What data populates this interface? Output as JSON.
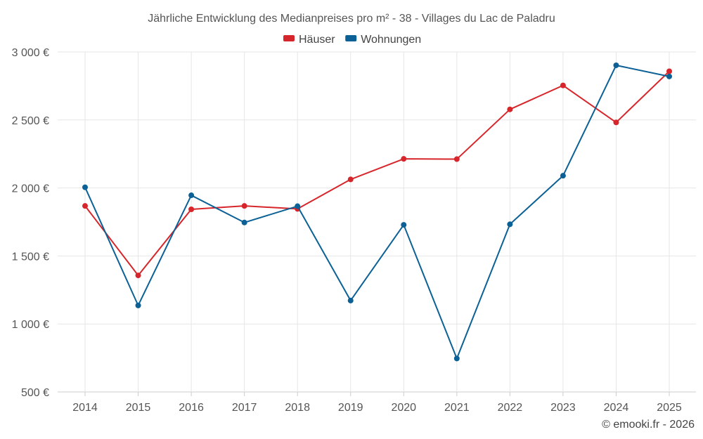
{
  "chart_data": {
    "type": "line",
    "title": "Jährliche Entwicklung des Medianpreises pro m² - 38 - Villages du Lac de Paladru",
    "xlabel": "",
    "ylabel": "",
    "categories": [
      "2014",
      "2015",
      "2016",
      "2017",
      "2018",
      "2019",
      "2020",
      "2021",
      "2022",
      "2023",
      "2024",
      "2025"
    ],
    "ylim": [
      500,
      3000
    ],
    "yticks": [
      500,
      1000,
      1500,
      2000,
      2500,
      3000
    ],
    "ytick_labels": [
      "500 €",
      "1 000 €",
      "1 500 €",
      "2 000 €",
      "2 500 €",
      "3 000 €"
    ],
    "grid": true,
    "legend_position": "top-center",
    "series": [
      {
        "name": "Häuser",
        "color": "#d7262b",
        "values": [
          1868,
          1357,
          1843,
          1868,
          1846,
          2063,
          2214,
          2212,
          2578,
          2754,
          2482,
          2858
        ]
      },
      {
        "name": "Wohnungen",
        "color": "#0b6196",
        "values": [
          2005,
          1136,
          1946,
          1746,
          1866,
          1172,
          1729,
          746,
          1733,
          2090,
          2902,
          2820
        ]
      }
    ]
  },
  "credit": "© emooki.fr - 2026"
}
